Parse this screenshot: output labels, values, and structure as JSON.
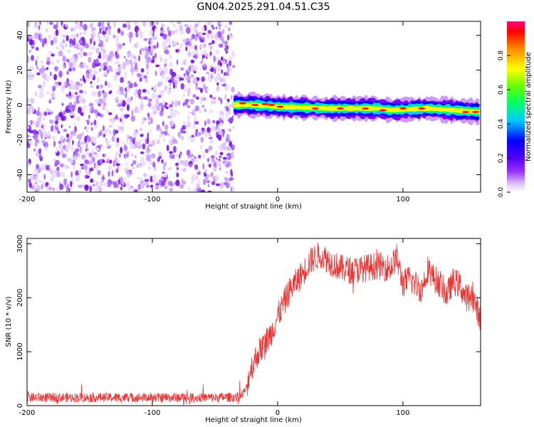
{
  "title": "GN04.2025.291.04.51.C35",
  "chart_data": [
    {
      "type": "heatmap",
      "name": "spectrogram",
      "xlabel": "Height of straight line (km)",
      "ylabel": "Frequency (Hz)",
      "xlim": [
        -200,
        162
      ],
      "ylim": [
        -50,
        48
      ],
      "xticks": [
        -200,
        -100,
        0,
        100
      ],
      "yticks": [
        -40,
        -20,
        0,
        20,
        40
      ],
      "grid": false,
      "noise_region_x": [
        -200,
        -35
      ],
      "signal_region_x": [
        -35,
        162
      ],
      "signal_track": [
        {
          "x": -35,
          "y": 0
        },
        {
          "x": -20,
          "y": 0
        },
        {
          "x": 0,
          "y": -1
        },
        {
          "x": 40,
          "y": -2
        },
        {
          "x": 80,
          "y": -2
        },
        {
          "x": 90,
          "y": -3
        },
        {
          "x": 120,
          "y": -2
        },
        {
          "x": 140,
          "y": -3
        },
        {
          "x": 162,
          "y": -4
        }
      ],
      "colorbar": {
        "label": "Normalized spectral amplitude",
        "range": [
          0,
          1
        ],
        "ticks": [
          "0.0",
          "0.2",
          "0.4",
          "0.6",
          "0.8"
        ],
        "colormap": [
          "#ffffff",
          "#cc99ff",
          "#8800ff",
          "#0000ff",
          "#00ccff",
          "#00ff66",
          "#66ff00",
          "#ffff00",
          "#ff8800",
          "#ff0000",
          "#ff0088"
        ]
      }
    },
    {
      "type": "line",
      "name": "snr",
      "xlabel": "Height of straight line (km)",
      "ylabel": "SNR (10 * v/v)",
      "xlim": [
        -200,
        162
      ],
      "ylim": [
        0,
        3100
      ],
      "xticks": [
        -200,
        -100,
        0,
        100
      ],
      "yticks": [
        0,
        1000,
        2000,
        3000
      ],
      "grid": false,
      "color": "#ee3333",
      "envelope": {
        "x": [
          -200,
          -150,
          -100,
          -50,
          -30,
          -25,
          -22,
          -18,
          -15,
          -10,
          -5,
          0,
          5,
          10,
          15,
          20,
          25,
          30,
          35,
          40,
          50,
          60,
          70,
          80,
          90,
          95,
          100,
          105,
          110,
          115,
          120,
          125,
          130,
          135,
          140,
          145,
          150,
          155,
          162
        ],
        "y": [
          150,
          150,
          150,
          150,
          160,
          300,
          650,
          850,
          1000,
          1150,
          1350,
          1650,
          1900,
          2150,
          2300,
          2450,
          2650,
          2750,
          2800,
          2700,
          2550,
          2500,
          2550,
          2600,
          2550,
          2750,
          2250,
          2350,
          2250,
          2150,
          2550,
          2350,
          2250,
          2050,
          2300,
          2250,
          2000,
          2050,
          1600
        ]
      }
    }
  ]
}
